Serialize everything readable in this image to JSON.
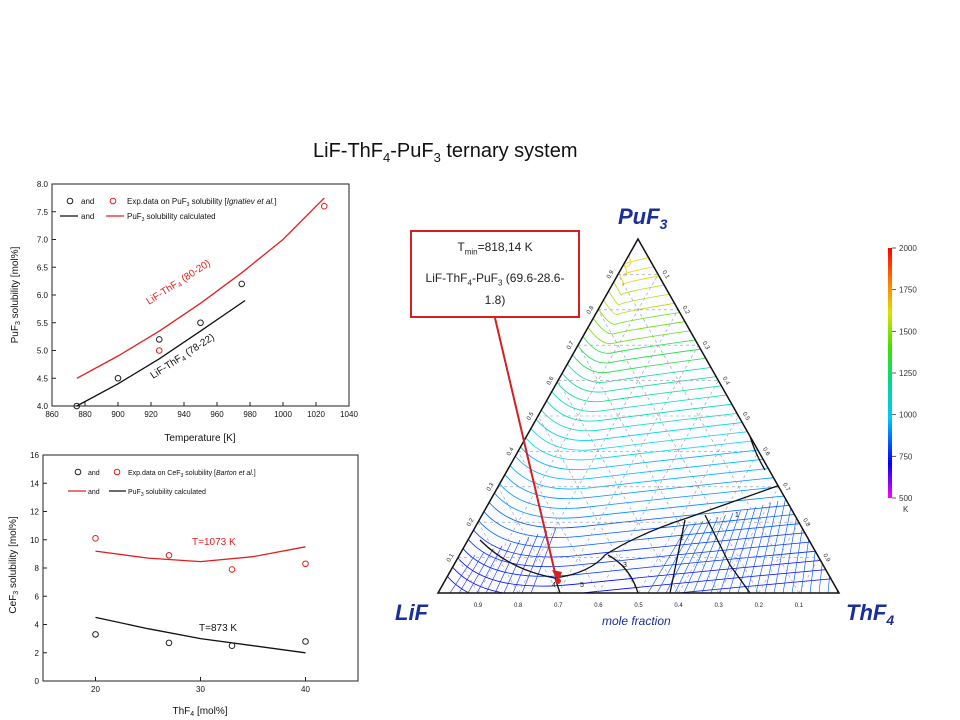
{
  "title": {
    "a": "LiF-ThF",
    "s1": "4",
    "b": "-PuF",
    "s2": "3",
    "c": " ternary system"
  },
  "callout": {
    "t": "T",
    "min": "min",
    "tval": "=818,14 K",
    "l2a": "LiF-ThF",
    "l2s1": "4",
    "l2b": "-PuF",
    "l2s2": "3",
    "l2c": " (69.6-28.6-1.8)"
  },
  "colors": {
    "exp_black": "#222222",
    "exp_red": "#e02020",
    "line_red": "#e02020",
    "line_black": "#111111",
    "callout_border": "#d42020"
  },
  "chart_data": [
    {
      "type": "scatter",
      "name": "PuF3 solubility vs temperature",
      "xlabel": "Temperature [K]",
      "ylabel_parts": {
        "a": "PuF",
        "s": "3",
        "b": " solubility [mol%]"
      },
      "xlim": [
        860,
        1040
      ],
      "ylim": [
        4.0,
        8.0
      ],
      "xticks": [
        860,
        880,
        900,
        920,
        940,
        960,
        980,
        1000,
        1020,
        1040
      ],
      "yticks": [
        4.0,
        4.5,
        5.0,
        5.5,
        6.0,
        6.5,
        7.0,
        7.5,
        8.0
      ],
      "legend": {
        "row1_and": "and",
        "row1_parts": {
          "a": "Exp.data on PuF",
          "s": "3",
          "b": " solubility [",
          "i": "Ignatiev et al.",
          "c": "]"
        },
        "row2_and": "and",
        "row2_parts": {
          "a": "PuF",
          "s": "3",
          "b": " solubility calculated"
        }
      },
      "labels": {
        "red": {
          "a": "LiF-ThF",
          "s": "4",
          "b": " (80-20)"
        },
        "black": {
          "a": "LiF-ThF",
          "s": "4",
          "b": " (78-22)"
        }
      },
      "exp_black": [
        [
          875,
          4.0
        ],
        [
          900,
          4.5
        ],
        [
          925,
          5.2
        ],
        [
          950,
          5.5
        ],
        [
          975,
          6.2
        ]
      ],
      "exp_red": [
        [
          925,
          5.0
        ],
        [
          1025,
          7.6
        ]
      ],
      "calc_red": [
        [
          875,
          4.5
        ],
        [
          900,
          4.9
        ],
        [
          925,
          5.35
        ],
        [
          950,
          5.85
        ],
        [
          975,
          6.4
        ],
        [
          1000,
          7.0
        ],
        [
          1025,
          7.75
        ]
      ],
      "calc_black": [
        [
          875,
          4.0
        ],
        [
          900,
          4.4
        ],
        [
          925,
          4.85
        ],
        [
          950,
          5.35
        ],
        [
          977,
          5.9
        ]
      ]
    },
    {
      "type": "scatter",
      "name": "CeF3 solubility vs ThF4",
      "xlabel_parts": {
        "a": "ThF",
        "s": "4",
        "b": " [mol%]"
      },
      "ylabel_parts": {
        "a": "CeF",
        "s": "3",
        "b": " solubility [mol%]"
      },
      "xlim": [
        15,
        45
      ],
      "ylim": [
        0,
        16
      ],
      "xticks": [
        20,
        30,
        40
      ],
      "yticks": [
        0,
        2,
        4,
        6,
        8,
        10,
        12,
        14,
        16
      ],
      "legend": {
        "row1_and": "and",
        "row1_parts": {
          "a": "Exp.data on CeF",
          "s": "3",
          "b": " solubility [",
          "i": "Barton et al.",
          "c": "]"
        },
        "row2_and": "and",
        "row2_parts": {
          "a": "PuF",
          "s": "3",
          "b": " solubility calculated"
        }
      },
      "labels": {
        "red": "T=1073 K",
        "black": "T=873 K"
      },
      "exp_red": [
        [
          20,
          10.1
        ],
        [
          27,
          8.9
        ],
        [
          33,
          7.9
        ],
        [
          40,
          8.3
        ]
      ],
      "exp_black": [
        [
          20,
          3.3
        ],
        [
          27,
          2.7
        ],
        [
          33,
          2.5
        ],
        [
          40,
          2.8
        ]
      ],
      "calc_red": [
        [
          20,
          9.2
        ],
        [
          25,
          8.7
        ],
        [
          30,
          8.45
        ],
        [
          35,
          8.8
        ],
        [
          40,
          9.5
        ]
      ],
      "calc_black": [
        [
          20,
          4.5
        ],
        [
          25,
          3.7
        ],
        [
          30,
          3.0
        ],
        [
          35,
          2.5
        ],
        [
          40,
          2.0
        ]
      ]
    },
    {
      "type": "heatmap",
      "name": "Ternary liquidus projection",
      "vertices": {
        "top": {
          "a": "PuF",
          "s": "3"
        },
        "left": "LiF",
        "right": {
          "a": "ThF",
          "s": "4"
        }
      },
      "axis_label": "mole fraction",
      "bottom_ticks": [
        "0.9",
        "0.8",
        "0.7",
        "0.6",
        "0.5",
        "0.4",
        "0.3",
        "0.2",
        "0.1"
      ],
      "side_ticks": [
        "0.1",
        "0.2",
        "0.3",
        "0.4",
        "0.5",
        "0.6",
        "0.7",
        "0.8",
        "0.9"
      ],
      "min_point": {
        "LiF": 69.6,
        "ThF4": 28.6,
        "PuF3": 1.8
      },
      "region_labels": [
        "2",
        "3",
        "1",
        "4",
        "5"
      ],
      "colorbar": {
        "min": 500,
        "max": 2000,
        "unit": "K",
        "ticks": [
          "2000",
          "1750",
          "1500",
          "1250",
          "1000",
          "750",
          "500"
        ],
        "colors": [
          "#ff00ff",
          "#0000ff",
          "#00c8ff",
          "#00d890",
          "#40e000",
          "#e0e000",
          "#ff8000",
          "#ff0000"
        ]
      }
    }
  ]
}
